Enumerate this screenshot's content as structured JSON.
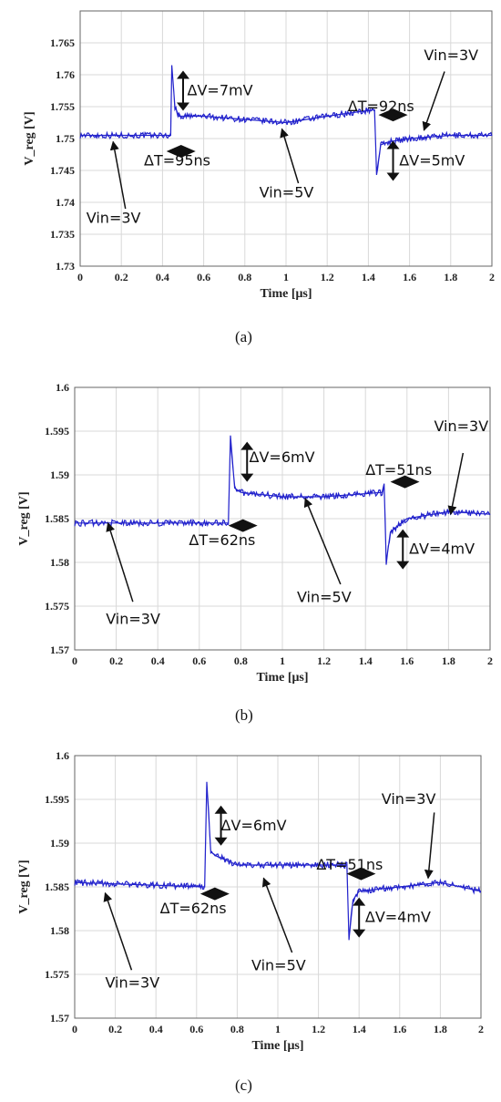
{
  "chart_data": [
    {
      "type": "line",
      "panel_label": "(a)",
      "xlabel": "Time [μs]",
      "ylabel": "V_reg [V]",
      "xlim": [
        0,
        2
      ],
      "ylim": [
        1.73,
        1.77
      ],
      "x_ticks": [
        "0",
        "0.2",
        "0.4",
        "0.6",
        "0.8",
        "1",
        "1.2",
        "1.4",
        "1.6",
        "1.8",
        "2"
      ],
      "y_ticks": [
        "1.73",
        "1.735",
        "1.74",
        "1.745",
        "1.75",
        "1.755",
        "1.76",
        "1.765"
      ],
      "grid": true,
      "line_color": "#2222cc",
      "series": [
        {
          "x": [
            0,
            0.44,
            0.445,
            0.46,
            0.48,
            0.5,
            0.6,
            0.8,
            1.0,
            1.2,
            1.42,
            1.43,
            1.44,
            1.46,
            1.5,
            1.6,
            1.8,
            2.0
          ],
          "y": [
            1.7505,
            1.7505,
            1.7615,
            1.755,
            1.7535,
            1.7535,
            1.7535,
            1.753,
            1.7525,
            1.7535,
            1.7545,
            1.7545,
            1.7445,
            1.749,
            1.7495,
            1.75,
            1.7505,
            1.7505
          ]
        }
      ],
      "annotations": [
        {
          "text": "ΔV=7mV",
          "x": 0.52,
          "y": 1.7575,
          "marker": "vertical-double-arrow",
          "mx": 0.5,
          "my": 1.7575
        },
        {
          "text": "ΔT=95ns",
          "x": 0.31,
          "y": 1.7465,
          "marker": "diamond",
          "mx": 0.49,
          "my": 1.748
        },
        {
          "text": "Vin=3V",
          "x": 0.03,
          "y": 1.7375,
          "arrow_from": [
            0.22,
            1.739
          ],
          "arrow_to": [
            0.16,
            1.7495
          ]
        },
        {
          "text": "Vin=5V",
          "x": 0.87,
          "y": 1.7415,
          "arrow_from": [
            1.06,
            1.743
          ],
          "arrow_to": [
            0.98,
            1.7515
          ]
        },
        {
          "text": "ΔT=92ns",
          "x": 1.3,
          "y": 1.755,
          "marker": "diamond",
          "mx": 1.52,
          "my": 1.7537
        },
        {
          "text": "ΔV=5mV",
          "x": 1.55,
          "y": 1.7465,
          "marker": "vertical-double-arrow",
          "mx": 1.52,
          "my": 1.7465
        },
        {
          "text": "Vin=3V",
          "x": 1.67,
          "y": 1.763,
          "arrow_from": [
            1.77,
            1.7605
          ],
          "arrow_to": [
            1.67,
            1.7513
          ]
        }
      ]
    },
    {
      "type": "line",
      "panel_label": "(b)",
      "xlabel": "Time [μs]",
      "ylabel": "V_reg [V]",
      "xlim": [
        0,
        2
      ],
      "ylim": [
        1.57,
        1.6
      ],
      "x_ticks": [
        "0",
        "0.2",
        "0.4",
        "0.6",
        "0.8",
        "1",
        "1.2",
        "1.4",
        "1.6",
        "1.8",
        "2"
      ],
      "y_ticks": [
        "1.57",
        "1.575",
        "1.58",
        "1.585",
        "1.59",
        "1.595",
        "1.6"
      ],
      "grid": true,
      "line_color": "#2222cc",
      "series": [
        {
          "x": [
            0,
            0.74,
            0.75,
            0.77,
            0.8,
            1.0,
            1.2,
            1.48,
            1.49,
            1.5,
            1.52,
            1.6,
            1.8,
            2.0
          ],
          "y": [
            1.5845,
            1.5845,
            1.5945,
            1.5885,
            1.588,
            1.5875,
            1.5875,
            1.588,
            1.589,
            1.58,
            1.5835,
            1.585,
            1.5858,
            1.5855
          ]
        }
      ],
      "annotations": [
        {
          "text": "ΔV=6mV",
          "x": 0.84,
          "y": 1.592,
          "marker": "vertical-double-arrow",
          "mx": 0.83,
          "my": 1.5915
        },
        {
          "text": "ΔT=62ns",
          "x": 0.55,
          "y": 1.5825,
          "marker": "diamond",
          "mx": 0.81,
          "my": 1.5842
        },
        {
          "text": "Vin=3V",
          "x": 0.15,
          "y": 1.5735,
          "arrow_from": [
            0.28,
            1.5755
          ],
          "arrow_to": [
            0.16,
            1.5845
          ]
        },
        {
          "text": "Vin=5V",
          "x": 1.07,
          "y": 1.576,
          "arrow_from": [
            1.28,
            1.5775
          ],
          "arrow_to": [
            1.11,
            1.5873
          ]
        },
        {
          "text": "ΔT=51ns",
          "x": 1.4,
          "y": 1.5905,
          "marker": "diamond",
          "mx": 1.59,
          "my": 1.5892
        },
        {
          "text": "ΔV=4mV",
          "x": 1.61,
          "y": 1.5815,
          "marker": "vertical-double-arrow",
          "mx": 1.58,
          "my": 1.5815
        },
        {
          "text": "Vin=3V",
          "x": 1.73,
          "y": 1.5955,
          "arrow_from": [
            1.87,
            1.5925
          ],
          "arrow_to": [
            1.81,
            1.5855
          ]
        }
      ]
    },
    {
      "type": "line",
      "panel_label": "(c)",
      "xlabel": "Time [μs]",
      "ylabel": "V_reg [V]",
      "xlim": [
        0,
        2
      ],
      "ylim": [
        1.57,
        1.6
      ],
      "x_ticks": [
        "0",
        "0.2",
        "0.4",
        "0.6",
        "0.8",
        "1",
        "1.2",
        "1.4",
        "1.6",
        "1.8",
        "2"
      ],
      "y_ticks": [
        "1.57",
        "1.575",
        "1.58",
        "1.585",
        "1.59",
        "1.595",
        "1.6"
      ],
      "grid": true,
      "line_color": "#2222cc",
      "series": [
        {
          "x": [
            0,
            0.64,
            0.65,
            0.67,
            0.7,
            0.8,
            1.0,
            1.2,
            1.33,
            1.34,
            1.35,
            1.37,
            1.4,
            1.6,
            1.8,
            2.0
          ],
          "y": [
            1.5855,
            1.585,
            1.597,
            1.589,
            1.5885,
            1.5875,
            1.5875,
            1.5875,
            1.5875,
            1.5875,
            1.579,
            1.5835,
            1.5845,
            1.585,
            1.5855,
            1.5845
          ]
        }
      ],
      "annotations": [
        {
          "text": "ΔV=6mV",
          "x": 0.72,
          "y": 1.592,
          "marker": "vertical-double-arrow",
          "mx": 0.72,
          "my": 1.592
        },
        {
          "text": "ΔT=62ns",
          "x": 0.42,
          "y": 1.5825,
          "marker": "diamond",
          "mx": 0.69,
          "my": 1.5842
        },
        {
          "text": "Vin=3V",
          "x": 0.15,
          "y": 1.574,
          "arrow_from": [
            0.28,
            1.5755
          ],
          "arrow_to": [
            0.15,
            1.5843
          ]
        },
        {
          "text": "Vin=5V",
          "x": 0.87,
          "y": 1.576,
          "arrow_from": [
            1.07,
            1.5775
          ],
          "arrow_to": [
            0.93,
            1.586
          ]
        },
        {
          "text": "ΔT=51ns",
          "x": 1.19,
          "y": 1.5875,
          "marker": "diamond",
          "mx": 1.41,
          "my": 1.5865
        },
        {
          "text": "ΔV=4mV",
          "x": 1.43,
          "y": 1.5815,
          "marker": "vertical-double-arrow",
          "mx": 1.4,
          "my": 1.5815
        },
        {
          "text": "Vin=3V",
          "x": 1.51,
          "y": 1.595,
          "arrow_from": [
            1.77,
            1.5935
          ],
          "arrow_to": [
            1.74,
            1.586
          ]
        }
      ]
    }
  ]
}
